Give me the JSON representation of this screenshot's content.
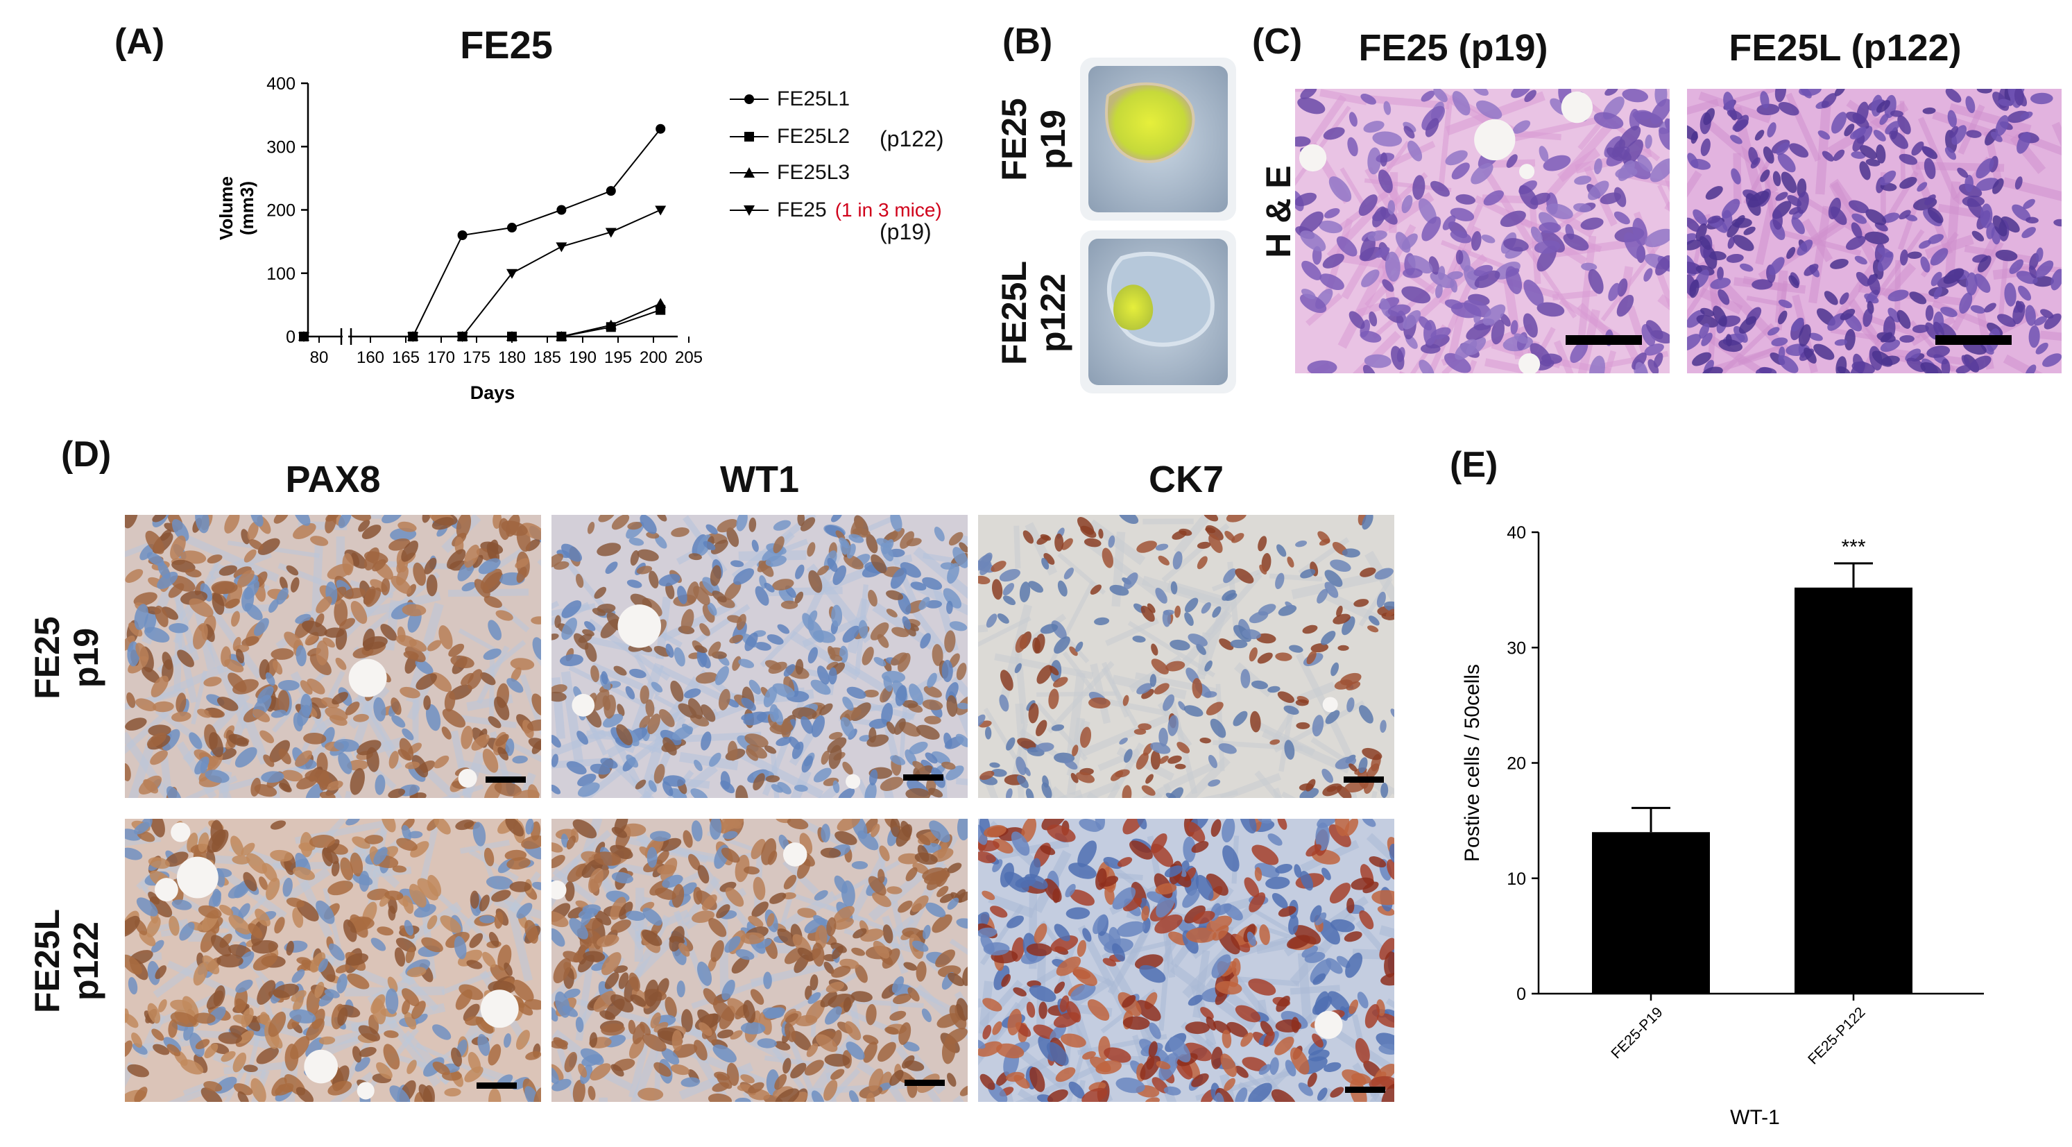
{
  "figure": {
    "panel_labels": {
      "A": "(A)",
      "B": "(B)",
      "C": "(C)",
      "D": "(D)",
      "E": "(E)"
    },
    "panel_b": {
      "row_labels": [
        {
          "line1": "FE25",
          "line2": "p19"
        },
        {
          "line1": "FE25L",
          "line2": "p122"
        }
      ]
    },
    "panel_c": {
      "col_titles": [
        "FE25 (p19)",
        "FE25L (p122)"
      ],
      "row_label": "H & E"
    },
    "panel_d": {
      "col_titles": [
        "PAX8",
        "WT1",
        "CK7"
      ],
      "row_labels": [
        {
          "line1": "FE25",
          "line2": "p19"
        },
        {
          "line1": "FE25L",
          "line2": "p122"
        }
      ]
    },
    "legend_a": {
      "items": [
        {
          "label": "FE25L1",
          "marker": "circle"
        },
        {
          "label": "FE25L2",
          "marker": "square",
          "note": "(p122)"
        },
        {
          "label": "FE25L3",
          "marker": "triangle-up"
        },
        {
          "label": "FE25",
          "marker": "triangle-down",
          "note": "(1 in 3 mice)",
          "note2": "(p19)"
        }
      ]
    },
    "colors": {
      "accent_red": "#d0021b",
      "bar": "#000000",
      "he_pink": "#d99ad3",
      "he_nuclei": "#5a3d9e",
      "ihc_blue": "#b7c6de",
      "ihc_brown": "#9a5a35"
    }
  },
  "chart_data": [
    {
      "type": "line",
      "title": "FE25",
      "xlabel": "Days",
      "ylabel": "Volume (mm3)",
      "ylim": [
        0,
        400
      ],
      "yticks": [
        "0",
        "100",
        "200",
        "300",
        "400"
      ],
      "xticks_left": [
        "80"
      ],
      "xticks_right": [
        "160",
        "165",
        "170",
        "175",
        "180",
        "185",
        "190",
        "195",
        "200",
        "205"
      ],
      "axis_break": true,
      "series": [
        {
          "name": "FE25L1",
          "marker": "circle",
          "x": [
            75,
            166,
            173,
            180,
            187,
            194,
            201
          ],
          "y": [
            0,
            0,
            160,
            172,
            200,
            230,
            328
          ]
        },
        {
          "name": "FE25L2",
          "marker": "square",
          "x": [
            75,
            166,
            173,
            180,
            187,
            194,
            201
          ],
          "y": [
            0,
            0,
            0,
            0,
            0,
            15,
            42
          ]
        },
        {
          "name": "FE25L3",
          "marker": "triangle-up",
          "x": [
            75,
            166,
            173,
            180,
            187,
            194,
            201
          ],
          "y": [
            0,
            0,
            0,
            0,
            0,
            18,
            52
          ]
        },
        {
          "name": "FE25",
          "marker": "triangle-down",
          "x": [
            75,
            166,
            173,
            180,
            187,
            194,
            201
          ],
          "y": [
            0,
            0,
            0,
            100,
            142,
            165,
            200
          ]
        }
      ]
    },
    {
      "type": "bar",
      "categories": [
        "FE25-P19",
        "FE25-P122"
      ],
      "values": [
        14,
        35.2
      ],
      "errors": [
        2.1,
        2.1
      ],
      "ylabel": "Postive cells / 50cells",
      "xlabel": "WT-1",
      "ylim": [
        0,
        40
      ],
      "yticks": [
        "0",
        "10",
        "20",
        "30",
        "40"
      ],
      "significance": [
        "",
        "***"
      ]
    }
  ]
}
